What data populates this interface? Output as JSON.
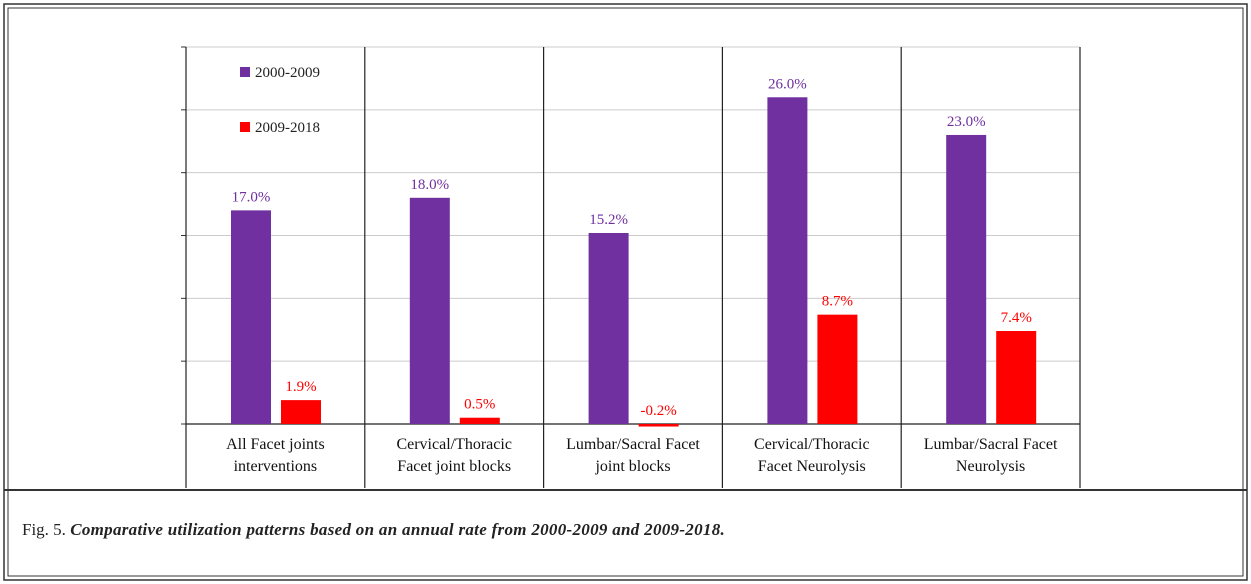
{
  "chart_data": {
    "type": "bar",
    "categories": [
      "All Facet joints interventions",
      "Cervical/Thoracic Facet joint blocks",
      "Lumbar/Sacral Facet joint blocks",
      "Cervical/Thoracic Facet Neurolysis",
      "Lumbar/Sacral Facet Neurolysis"
    ],
    "series": [
      {
        "name": "2000-2009",
        "color": "#7030a0",
        "values": [
          17.0,
          18.0,
          15.2,
          26.0,
          23.0
        ],
        "value_labels": [
          "17.0%",
          "18.0%",
          "15.2%",
          "26.0%",
          "23.0%"
        ]
      },
      {
        "name": "2009-2018",
        "color": "#ff0000",
        "values": [
          1.9,
          0.5,
          -0.2,
          8.7,
          7.4
        ],
        "value_labels": [
          "1.9%",
          "0.5%",
          "-0.2%",
          "8.7%",
          "7.4%"
        ]
      }
    ],
    "ylim": [
      0,
      30
    ],
    "yticks": [
      0,
      5,
      10,
      15,
      20,
      25,
      30
    ],
    "grid": true,
    "legend": "top-left",
    "caption": {
      "label": "Fig. 5.",
      "text": "Comparative utilization patterns based on an annual rate from 2000-2009 and 2009-2018."
    }
  }
}
